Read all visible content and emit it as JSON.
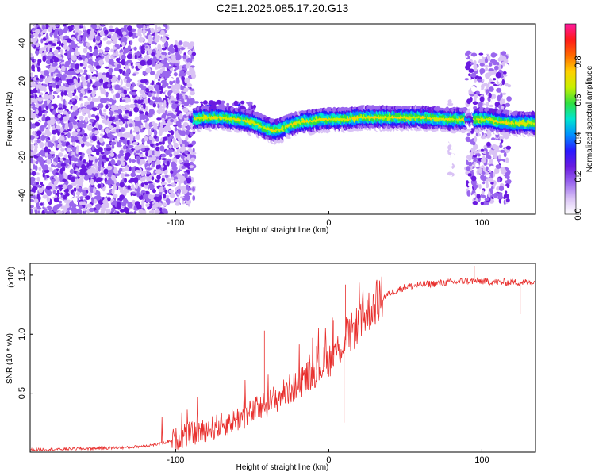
{
  "chart_data": [
    {
      "type": "heatmap",
      "title": "C2E1.2025.085.17.20.G13",
      "xlabel": "Height of straight line (km)",
      "ylabel": "Frequency (Hz)",
      "xlim": [
        -195,
        135
      ],
      "ylim": [
        -50,
        50
      ],
      "xticks": [
        -100,
        0,
        100
      ],
      "yticks": [
        -40,
        -20,
        0,
        20,
        40
      ],
      "colorbar": {
        "label": "Normalized spectral amplitude",
        "range": [
          0,
          1
        ],
        "ticks": [
          "0.0",
          "0.2",
          "0.4",
          "0.6",
          "0.8"
        ],
        "colors": [
          "#ffffff",
          "#d9c2f5",
          "#9a66ee",
          "#6a1ae0",
          "#2a18ff",
          "#0090ff",
          "#00e5d0",
          "#30e040",
          "#c8f000",
          "#ffd000",
          "#ff6a00",
          "#ff1a1a",
          "#ff1aa0"
        ]
      },
      "ridge": {
        "x": [
          -90,
          -80,
          -70,
          -60,
          -52,
          -45,
          -40,
          -35,
          -30,
          -25,
          -20,
          -15,
          -10,
          -5,
          0,
          10,
          20,
          40,
          60,
          80,
          92,
          100,
          105,
          110,
          120,
          135
        ],
        "y": [
          0,
          1,
          1,
          0,
          -1,
          -3,
          -5,
          -6,
          -5,
          -3,
          -2,
          -1,
          -1,
          0,
          0,
          0,
          1,
          1,
          1,
          0,
          0,
          0,
          0,
          -1,
          -2,
          -2
        ]
      }
    },
    {
      "type": "line",
      "title": "",
      "xlabel": "Height of straight line (km)",
      "ylabel": "SNR (10 * v/v)",
      "scale_label": "(x10",
      "scale_exp": "4",
      "scale_suffix": ")",
      "xlim": [
        -195,
        135
      ],
      "ylim": [
        0,
        1.6
      ],
      "xticks": [
        -100,
        0,
        100
      ],
      "yticks": [
        0.5,
        1.0,
        1.5
      ],
      "ytick_labels": [
        "0.5",
        "1.0",
        "1.5"
      ],
      "color": "#e8302e",
      "series": [
        {
          "x": [
            -195,
            -160,
            -130,
            -110,
            -100,
            -90,
            -80,
            -70,
            -60,
            -50,
            -40,
            -30,
            -20,
            -10,
            0,
            5,
            10,
            20,
            30,
            40,
            50,
            60,
            70,
            80,
            90,
            100,
            110,
            120,
            130,
            135
          ],
          "y": [
            0.02,
            0.03,
            0.04,
            0.07,
            0.11,
            0.15,
            0.19,
            0.23,
            0.28,
            0.34,
            0.41,
            0.49,
            0.58,
            0.68,
            0.78,
            0.85,
            0.93,
            1.1,
            1.26,
            1.35,
            1.4,
            1.42,
            1.43,
            1.44,
            1.45,
            1.45,
            1.44,
            1.44,
            1.44,
            1.44
          ]
        }
      ],
      "spikes": [
        {
          "x": -42,
          "y": 1.03
        },
        {
          "x": -28,
          "y": 0.86
        },
        {
          "x": -17,
          "y": 0.72
        },
        {
          "x": -8,
          "y": 0.9
        },
        {
          "x": 3,
          "y": 1.12
        },
        {
          "x": 10,
          "y": 0.25
        },
        {
          "x": 11,
          "y": 1.42
        },
        {
          "x": 95,
          "y": 1.58
        },
        {
          "x": 125,
          "y": 1.17
        }
      ]
    }
  ]
}
